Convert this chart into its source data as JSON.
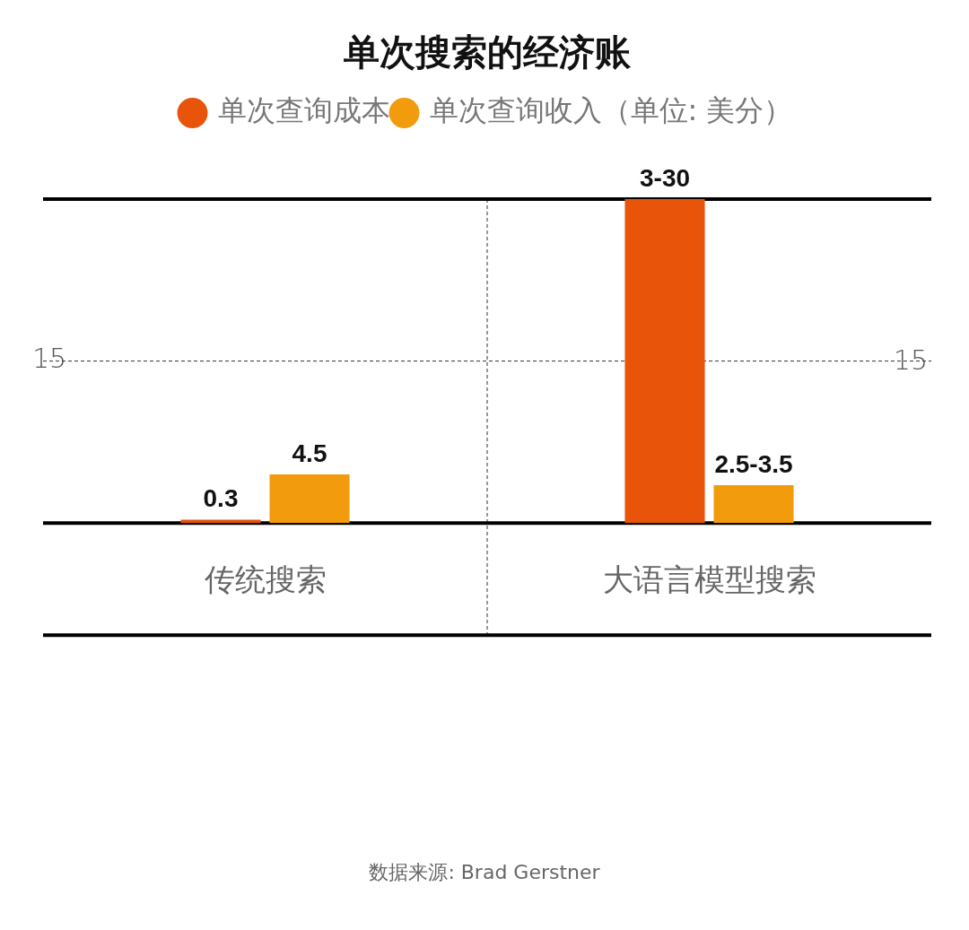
{
  "chart_data": {
    "type": "bar",
    "title": "单次搜索的经济账",
    "categories": [
      "传统搜索",
      "大语言模型搜索"
    ],
    "series": [
      {
        "name": "单次查询成本",
        "color": "#e8540a",
        "values": [
          0.3,
          30
        ],
        "value_labels": [
          "0.3",
          "3-30"
        ]
      },
      {
        "name": "单次查询收入（单位: 美分）",
        "color": "#f29b0c",
        "values": [
          4.5,
          3.5
        ],
        "value_labels": [
          "4.5",
          "2.5-3.5"
        ]
      }
    ],
    "ylim": [
      0,
      30
    ],
    "yticks": [
      {
        "value": 0,
        "label": null
      },
      15,
      {
        "value": 30,
        "label": null
      }
    ],
    "grid": "y",
    "legend": "top",
    "marker": "circle",
    "annotations": [
      "15",
      "数据来源: Brad Gerstner"
    ]
  }
}
